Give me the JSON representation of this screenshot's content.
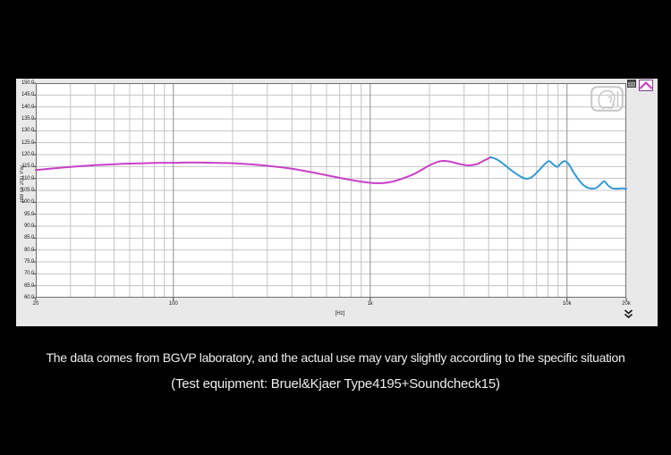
{
  "colors": {
    "page_bg": "#000000",
    "window_bg": "#e9e9e9",
    "plot_bg": "#ffffff",
    "grid_minor": "#c4c4c4",
    "grid_major": "#8f8f8f",
    "plot_frame": "#6e6e6e",
    "tick_color": "#444444",
    "tick_text": "#1c1c1c",
    "caption_text": "#efefef",
    "series_low": "#c840c8",
    "series_high": "#3699d4",
    "icon_gray": "#c6c6c6",
    "toolbar_purple": "#7d3f8f",
    "toolbar_magenta": "#c23fc2"
  },
  "caption": {
    "line1": "The data comes from BGVP laboratory, and the actual use may vary slightly according to the specific situation",
    "line2": "(Test equipment: Bruel&Kjaer Type4195+Soundcheck15)"
  },
  "icons": {
    "head_ear": "head-ear-icon",
    "memory_list": "memory-list-icon",
    "graph_curve": "graph-curve-icon",
    "collapse": "collapse-chevrons-icon"
  },
  "chart_data": {
    "type": "line",
    "x_scale": "log",
    "title": "",
    "xlabel": "[Hz]",
    "ylabel": "[dB re 20u Pa]",
    "xlim": [
      20,
      20000
    ],
    "ylim": [
      60,
      150
    ],
    "grid": true,
    "legend": "none",
    "x_tick_values": [
      20,
      100,
      1000,
      10000,
      20000
    ],
    "x_tick_labels": [
      "20",
      "100",
      "1k",
      "10k",
      "20k"
    ],
    "y_tick_values": [
      150,
      145,
      140,
      135,
      130,
      125,
      120,
      115,
      110,
      105,
      100,
      95,
      90,
      85,
      80,
      75,
      70,
      65,
      60
    ],
    "y_tick_labels": [
      "150.0",
      "145.0",
      "140.0",
      "135.0",
      "130.0",
      "125.0",
      "120.0",
      "115.0",
      "110.0",
      "105.0",
      "100.0",
      "95.0",
      "90.0",
      "85.0",
      "80.0",
      "75.0",
      "70.0",
      "65.0",
      "60.0"
    ],
    "series": [
      {
        "name": "frequency-response-low-segment",
        "color": "#c840c8",
        "points": [
          [
            20,
            113.5
          ],
          [
            25,
            114.3
          ],
          [
            32,
            115.0
          ],
          [
            40,
            115.6
          ],
          [
            50,
            116.0
          ],
          [
            63,
            116.3
          ],
          [
            80,
            116.5
          ],
          [
            100,
            116.6
          ],
          [
            125,
            116.7
          ],
          [
            160,
            116.6
          ],
          [
            200,
            116.4
          ],
          [
            250,
            115.9
          ],
          [
            320,
            115.1
          ],
          [
            400,
            114.1
          ],
          [
            500,
            112.7
          ],
          [
            630,
            111.0
          ],
          [
            800,
            109.4
          ],
          [
            950,
            108.4
          ],
          [
            1100,
            108.0
          ],
          [
            1250,
            108.4
          ],
          [
            1450,
            109.9
          ],
          [
            1700,
            112.2
          ],
          [
            2000,
            115.5
          ],
          [
            2250,
            117.2
          ],
          [
            2500,
            117.2
          ],
          [
            2800,
            116.2
          ],
          [
            3150,
            115.5
          ],
          [
            3500,
            116.1
          ],
          [
            3800,
            117.6
          ],
          [
            4100,
            118.9
          ]
        ]
      },
      {
        "name": "frequency-response-high-segment",
        "color": "#3699d4",
        "points": [
          [
            4100,
            118.9
          ],
          [
            4400,
            118.0
          ],
          [
            4800,
            115.8
          ],
          [
            5300,
            113.0
          ],
          [
            5900,
            110.5
          ],
          [
            6300,
            109.9
          ],
          [
            6700,
            110.9
          ],
          [
            7200,
            113.4
          ],
          [
            7700,
            116.0
          ],
          [
            8100,
            117.3
          ],
          [
            8500,
            116.0
          ],
          [
            8900,
            114.9
          ],
          [
            9300,
            116.3
          ],
          [
            9700,
            117.3
          ],
          [
            10200,
            116.0
          ],
          [
            10800,
            112.6
          ],
          [
            11500,
            109.3
          ],
          [
            12300,
            106.8
          ],
          [
            13200,
            105.8
          ],
          [
            14100,
            106.1
          ],
          [
            15000,
            108.0
          ],
          [
            15500,
            108.8
          ],
          [
            16200,
            107.0
          ],
          [
            17000,
            105.9
          ],
          [
            18000,
            105.7
          ],
          [
            19000,
            105.9
          ],
          [
            20000,
            105.6
          ]
        ]
      }
    ]
  }
}
